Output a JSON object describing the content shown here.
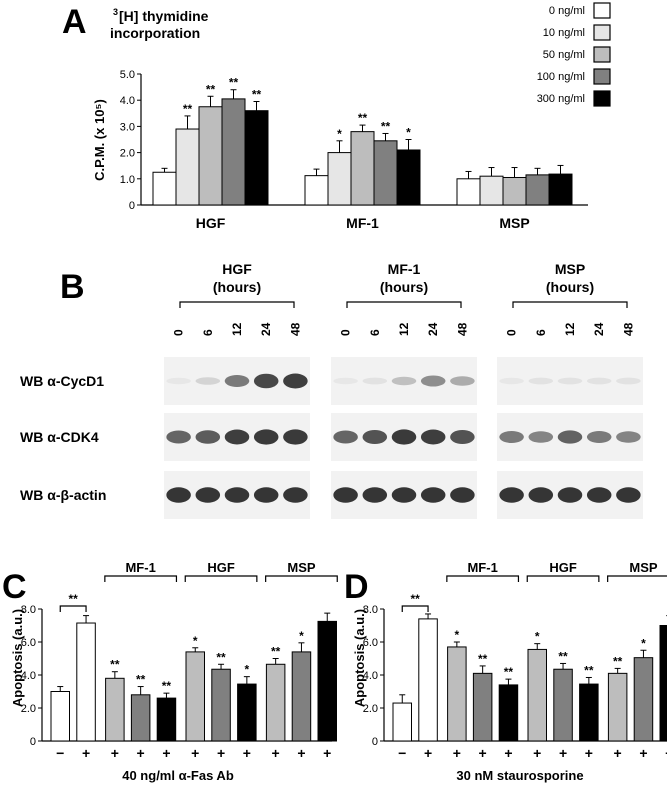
{
  "colors": {
    "dose_fills": [
      "#ffffff",
      "#e6e6e6",
      "#bdbdbd",
      "#808080",
      "#000000"
    ],
    "blot_band": "#2a2a2a",
    "blot_background": "#f2f2f2"
  },
  "panel_a": {
    "letter": "A",
    "title_sup": "3",
    "title_line1": "[H] thymidine",
    "title_line2": "incorporation",
    "legend": [
      "0 ng/ml",
      "10 ng/ml",
      "50 ng/ml",
      "100 ng/ml",
      "300 ng/ml"
    ]
  },
  "panel_b": {
    "letter": "B",
    "groups": [
      {
        "name": "HGF",
        "unit": "(hours)"
      },
      {
        "name": "MF-1",
        "unit": "(hours)"
      },
      {
        "name": "MSP",
        "unit": "(hours)"
      }
    ],
    "timepoints": [
      "0",
      "6",
      "12",
      "24",
      "48"
    ],
    "rows": [
      {
        "label": "WB α-CycD1",
        "intensity": [
          [
            0.05,
            0.15,
            0.6,
            0.85,
            0.9
          ],
          [
            0.05,
            0.08,
            0.25,
            0.5,
            0.35
          ],
          [
            0.05,
            0.08,
            0.08,
            0.08,
            0.08
          ]
        ]
      },
      {
        "label": "WB α-CDK4",
        "intensity": [
          [
            0.7,
            0.75,
            0.9,
            0.92,
            0.92
          ],
          [
            0.7,
            0.8,
            0.92,
            0.9,
            0.8
          ],
          [
            0.6,
            0.55,
            0.72,
            0.6,
            0.55
          ]
        ]
      },
      {
        "label": "WB α-β-actin",
        "intensity": [
          [
            0.95,
            0.95,
            0.95,
            0.95,
            0.95
          ],
          [
            0.95,
            0.95,
            0.95,
            0.95,
            0.95
          ],
          [
            0.95,
            0.95,
            0.95,
            0.95,
            0.95
          ]
        ]
      }
    ]
  },
  "panel_c": {
    "letter": "C",
    "xlabel_treatment": "40 ng/ml α-Fas Ab",
    "signs": [
      "−",
      "+",
      "+",
      "+",
      "+",
      "+",
      "+",
      "+",
      "+",
      "+",
      "+"
    ],
    "groups": [
      "MF-1",
      "HGF",
      "MSP"
    ]
  },
  "panel_d": {
    "letter": "D",
    "xlabel_treatment": "30 nM staurosporine",
    "signs": [
      "−",
      "+",
      "+",
      "+",
      "+",
      "+",
      "+",
      "+",
      "+",
      "+",
      "+"
    ],
    "groups": [
      "MF-1",
      "HGF",
      "MSP"
    ]
  },
  "chart_data": [
    {
      "type": "bar",
      "panel": "A",
      "categories": [
        "HGF",
        "MF-1",
        "MSP"
      ],
      "ylabel": "C.P.M. (x 10⁵)",
      "ylim": [
        0,
        5
      ],
      "yticks": [
        "0",
        "1.0",
        "2.0",
        "3.0",
        "4.0",
        "5.0"
      ],
      "legend_position": "top-right",
      "series": [
        {
          "name": "0 ng/ml",
          "values": [
            1.25,
            1.12,
            1.0
          ],
          "errors": [
            0.15,
            0.25,
            0.28
          ],
          "sig": [
            "",
            "",
            ""
          ]
        },
        {
          "name": "10 ng/ml",
          "values": [
            2.9,
            2.0,
            1.1
          ],
          "errors": [
            0.5,
            0.45,
            0.33
          ],
          "sig": [
            "**",
            "*",
            ""
          ]
        },
        {
          "name": "50 ng/ml",
          "values": [
            3.75,
            2.8,
            1.05
          ],
          "errors": [
            0.4,
            0.25,
            0.38
          ],
          "sig": [
            "**",
            "**",
            ""
          ]
        },
        {
          "name": "100 ng/ml",
          "values": [
            4.05,
            2.45,
            1.15
          ],
          "errors": [
            0.35,
            0.28,
            0.25
          ],
          "sig": [
            "**",
            "**",
            ""
          ]
        },
        {
          "name": "300 ng/ml",
          "values": [
            3.6,
            2.1,
            1.18
          ],
          "errors": [
            0.35,
            0.4,
            0.33
          ],
          "sig": [
            "**",
            "*",
            ""
          ]
        }
      ]
    },
    {
      "type": "bar",
      "panel": "C",
      "ylabel": "Apoptosis (a.u.)",
      "xlabel": "40 ng/ml α-Fas Ab",
      "ylim": [
        0,
        8
      ],
      "yticks": [
        "0",
        "2.0",
        "4.0",
        "6.0",
        "8.0"
      ],
      "values": [
        3.0,
        7.15,
        3.8,
        2.8,
        2.6,
        5.4,
        4.35,
        3.45,
        4.65,
        5.4,
        7.25
      ],
      "errors": [
        0.3,
        0.45,
        0.4,
        0.5,
        0.3,
        0.25,
        0.3,
        0.45,
        0.35,
        0.55,
        0.5
      ],
      "fill_index": [
        0,
        0,
        2,
        3,
        4,
        2,
        3,
        4,
        2,
        3,
        4
      ],
      "sig": [
        "",
        "",
        "**",
        "**",
        "**",
        "*",
        "**",
        "*",
        "**",
        "*",
        ""
      ],
      "bracket_sig": "**"
    },
    {
      "type": "bar",
      "panel": "D",
      "ylabel": "Apoptosis (a.u.)",
      "xlabel": "30 nM staurosporine",
      "ylim": [
        0,
        8
      ],
      "yticks": [
        "0",
        "2.0",
        "4.0",
        "6.0",
        "8.0"
      ],
      "values": [
        2.3,
        7.4,
        5.7,
        4.1,
        3.4,
        5.55,
        4.35,
        3.45,
        4.1,
        5.05,
        7.0
      ],
      "errors": [
        0.5,
        0.3,
        0.3,
        0.45,
        0.35,
        0.35,
        0.35,
        0.4,
        0.3,
        0.45,
        0.6
      ],
      "fill_index": [
        0,
        0,
        2,
        3,
        4,
        2,
        3,
        4,
        2,
        3,
        4
      ],
      "sig": [
        "",
        "",
        "*",
        "**",
        "**",
        "*",
        "**",
        "**",
        "**",
        "*",
        ""
      ],
      "bracket_sig": "**"
    }
  ]
}
